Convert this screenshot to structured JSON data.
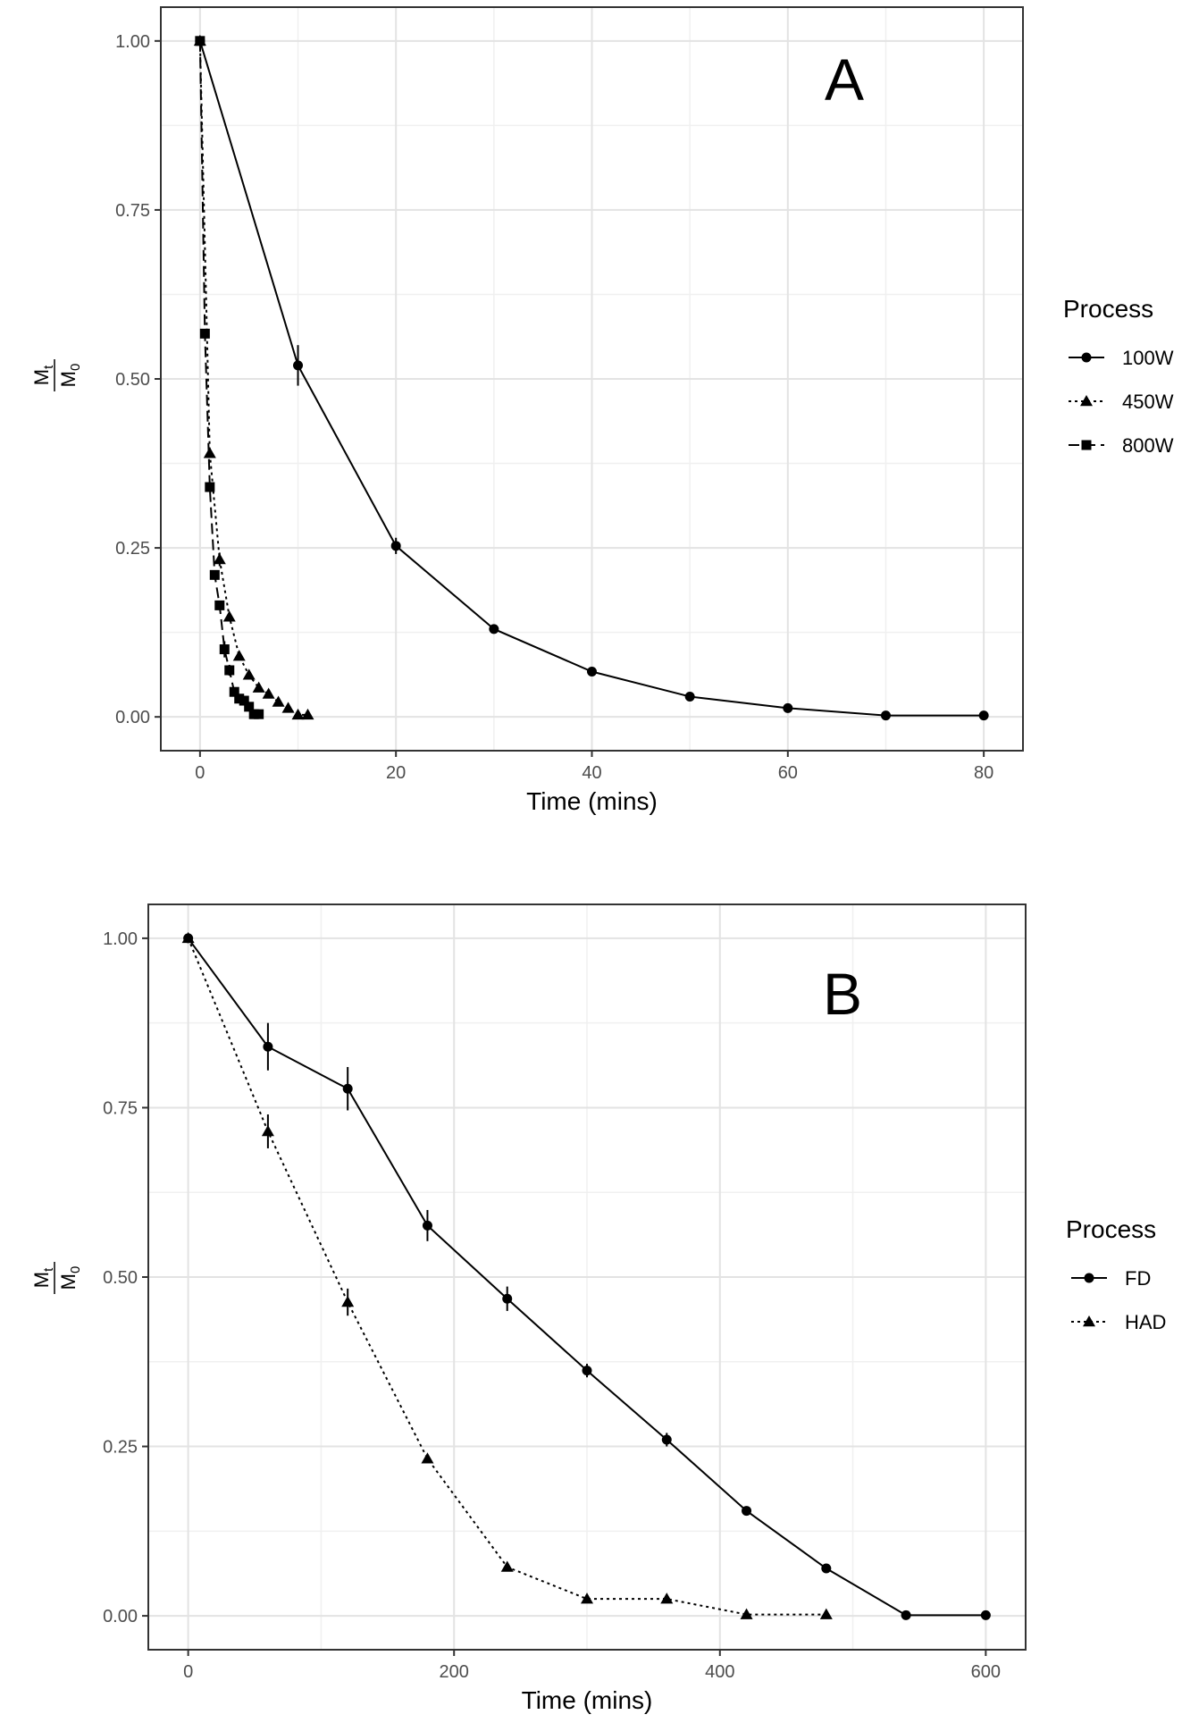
{
  "chart_data": [
    {
      "type": "line",
      "panel_label": "A",
      "xlabel": "Time (mins)",
      "ylabel": {
        "numerator": "M",
        "numerator_sub": "t",
        "denominator": "M",
        "denominator_sub": "0"
      },
      "xlim": [
        -4,
        84
      ],
      "ylim": [
        -0.05,
        1.05
      ],
      "x_ticks": [
        0,
        20,
        40,
        60,
        80
      ],
      "x_tick_labels": [
        "0",
        "20",
        "40",
        "60",
        "80"
      ],
      "y_ticks": [
        0,
        0.25,
        0.5,
        0.75,
        1.0
      ],
      "y_tick_labels": [
        "0.00",
        "0.25",
        "0.50",
        "0.75",
        "1.00"
      ],
      "grid": true,
      "legend": {
        "title": "Process",
        "position": "right"
      },
      "series": [
        {
          "name": "100W",
          "marker": "circle",
          "line": "solid",
          "x": [
            0,
            10,
            20,
            30,
            40,
            50,
            60,
            70,
            80
          ],
          "y": [
            1.0,
            0.52,
            0.253,
            0.13,
            0.067,
            0.03,
            0.013,
            0.002,
            0.002
          ],
          "err": [
            0,
            0.03,
            0.012,
            0,
            0,
            0,
            0,
            0,
            0
          ]
        },
        {
          "name": "450W",
          "marker": "triangle",
          "line": "dotted",
          "x": [
            0,
            1,
            2,
            3,
            4,
            5,
            6,
            7,
            8,
            9,
            10,
            11
          ],
          "y": [
            1.0,
            0.39,
            0.233,
            0.148,
            0.09,
            0.062,
            0.043,
            0.034,
            0.022,
            0.013,
            0.003,
            0.003
          ],
          "err": [
            0,
            0,
            0.01,
            0,
            0,
            0,
            0,
            0,
            0,
            0,
            0,
            0
          ]
        },
        {
          "name": "800W",
          "marker": "square",
          "line": "dashed",
          "x": [
            0,
            0.5,
            1,
            1.5,
            2,
            2.5,
            3,
            3.5,
            4,
            4.5,
            5,
            5.5,
            6
          ],
          "y": [
            1.0,
            0.567,
            0.34,
            0.21,
            0.165,
            0.1,
            0.069,
            0.037,
            0.027,
            0.024,
            0.015,
            0.004,
            0.004
          ],
          "err": [
            0,
            0,
            0,
            0,
            0,
            0.012,
            0.008,
            0,
            0,
            0,
            0,
            0,
            0
          ]
        }
      ]
    },
    {
      "type": "line",
      "panel_label": "B",
      "xlabel": "Time (mins)",
      "ylabel": {
        "numerator": "M",
        "numerator_sub": "t",
        "denominator": "M",
        "denominator_sub": "0"
      },
      "xlim": [
        -30,
        630
      ],
      "ylim": [
        -0.05,
        1.05
      ],
      "x_ticks": [
        0,
        200,
        400,
        600
      ],
      "x_tick_labels": [
        "0",
        "200",
        "400",
        "600"
      ],
      "y_ticks": [
        0,
        0.25,
        0.5,
        0.75,
        1.0
      ],
      "y_tick_labels": [
        "0.00",
        "0.25",
        "0.50",
        "0.75",
        "1.00"
      ],
      "grid": true,
      "legend": {
        "title": "Process",
        "position": "right"
      },
      "series": [
        {
          "name": "FD",
          "marker": "circle",
          "line": "solid",
          "x": [
            0,
            60,
            120,
            180,
            240,
            300,
            360,
            420,
            480,
            540,
            600
          ],
          "y": [
            1.0,
            0.84,
            0.778,
            0.576,
            0.468,
            0.362,
            0.26,
            0.155,
            0.07,
            0.001,
            0.001
          ],
          "err": [
            0,
            0.035,
            0.032,
            0.023,
            0.018,
            0.01,
            0.01,
            0,
            0,
            0,
            0
          ]
        },
        {
          "name": "HAD",
          "marker": "triangle",
          "line": "dotted",
          "x": [
            0,
            60,
            120,
            180,
            240,
            300,
            360,
            420,
            480
          ],
          "y": [
            1.0,
            0.715,
            0.463,
            0.232,
            0.072,
            0.025,
            0.025,
            0.002,
            0.002
          ],
          "err": [
            0,
            0.025,
            0.02,
            0,
            0,
            0,
            0,
            0,
            0
          ]
        }
      ]
    }
  ]
}
